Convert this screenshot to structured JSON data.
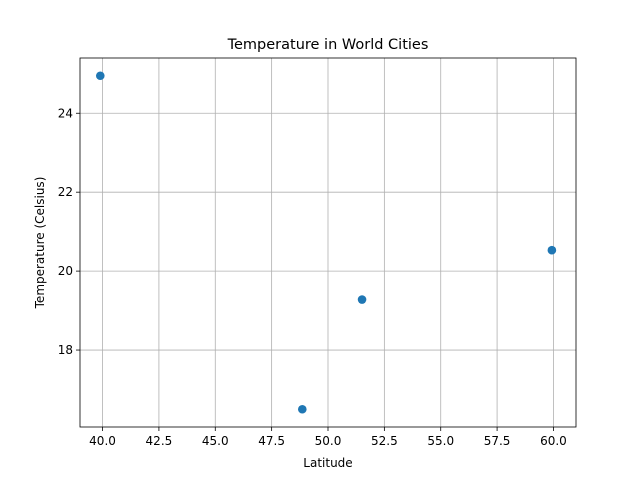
{
  "chart_data": {
    "type": "scatter",
    "title": "Temperature in World Cities",
    "xlabel": "Latitude",
    "ylabel": "Temperature (Celsius)",
    "xlim": [
      39.0,
      61.0
    ],
    "ylim": [
      16.05,
      25.4
    ],
    "xticks": [
      40.0,
      42.5,
      45.0,
      47.5,
      50.0,
      52.5,
      55.0,
      57.5,
      60.0
    ],
    "xtick_labels": [
      "40.0",
      "42.5",
      "45.0",
      "47.5",
      "50.0",
      "52.5",
      "55.0",
      "57.5",
      "60.0"
    ],
    "yticks": [
      18,
      20,
      22,
      24
    ],
    "ytick_labels": [
      "18",
      "20",
      "22",
      "24"
    ],
    "grid": true,
    "marker_color": "#1f77b4",
    "points": [
      {
        "x": 39.9,
        "y": 24.95
      },
      {
        "x": 48.86,
        "y": 16.5
      },
      {
        "x": 51.51,
        "y": 19.28
      },
      {
        "x": 59.93,
        "y": 20.53
      }
    ]
  }
}
